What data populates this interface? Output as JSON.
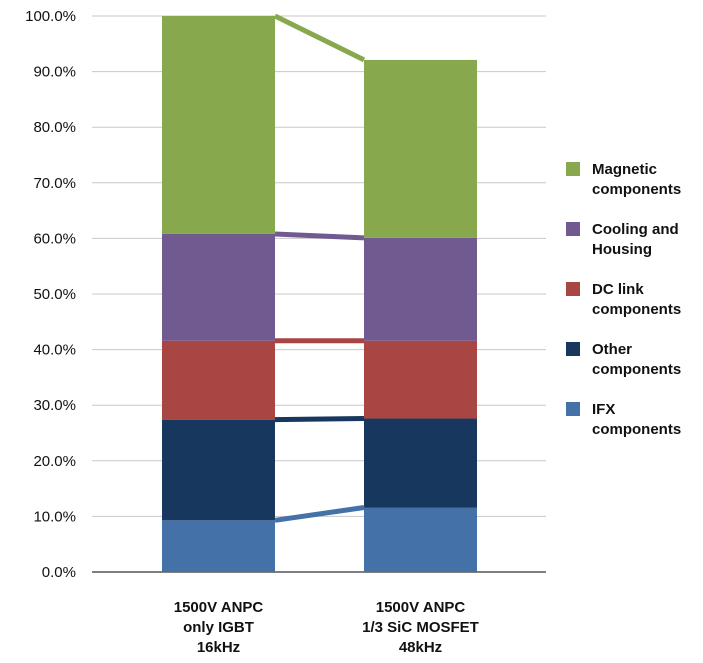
{
  "chart_data": {
    "type": "bar",
    "stacked": true,
    "categories": [
      [
        "1500V ANPC",
        "only IGBT",
        "16kHz"
      ],
      [
        "1500V ANPC",
        "1/3 SiC MOSFET",
        "48kHz"
      ]
    ],
    "series": [
      {
        "name": [
          "IFX",
          "components"
        ],
        "color": "#4472a8",
        "values": [
          9.3,
          11.6
        ]
      },
      {
        "name": [
          "Other",
          "components"
        ],
        "color": "#17375e",
        "values": [
          18.1,
          16.0
        ]
      },
      {
        "name": [
          "DC link",
          "components"
        ],
        "color": "#a84644",
        "values": [
          14.2,
          14.0
        ]
      },
      {
        "name": [
          "Cooling and",
          "Housing"
        ],
        "color": "#715a90",
        "values": [
          19.2,
          18.5
        ]
      },
      {
        "name": [
          "Magnetic",
          "components"
        ],
        "color": "#87a84d",
        "values": [
          39.2,
          32.0
        ]
      }
    ],
    "ylim": [
      0,
      100
    ],
    "yticks": [
      "0.0%",
      "10.0%",
      "20.0%",
      "30.0%",
      "40.0%",
      "50.0%",
      "60.0%",
      "70.0%",
      "80.0%",
      "90.0%",
      "100.0%"
    ],
    "grid": true,
    "legend_position": "right",
    "xlabel": "",
    "ylabel": "",
    "title": ""
  }
}
